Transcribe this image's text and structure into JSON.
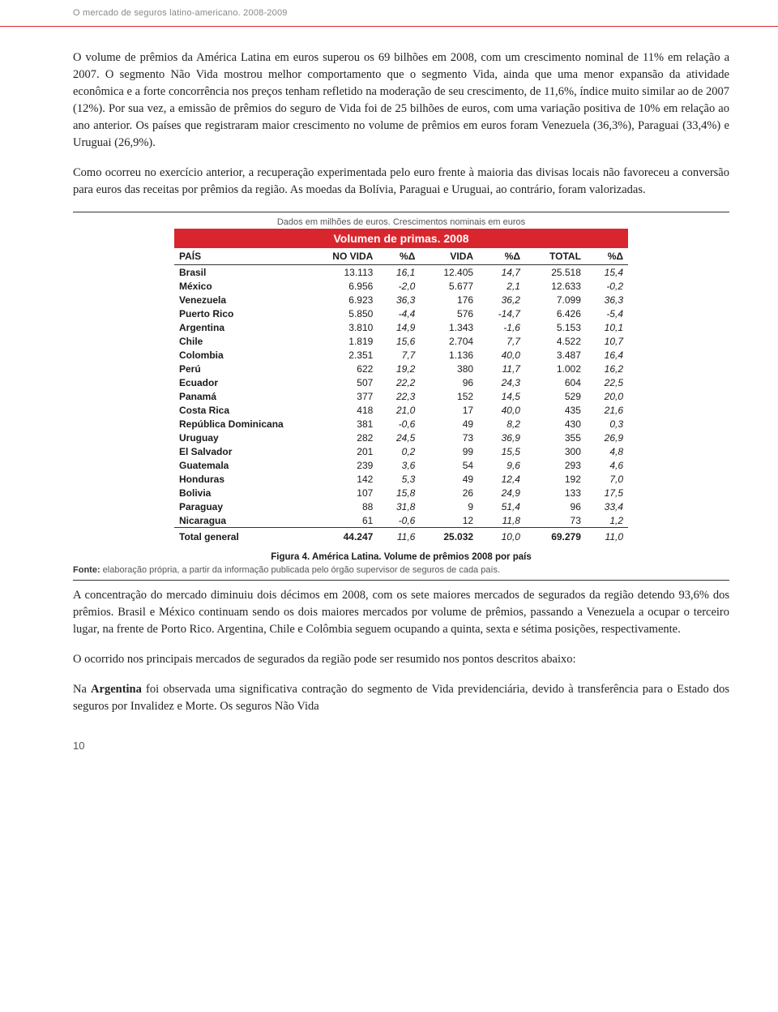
{
  "header": "O mercado de seguros latino-americano. 2008-2009",
  "paragraphs": {
    "p1": "O volume de prêmios da América Latina em euros superou os 69 bilhões em 2008, com um crescimento nominal de 11% em relação a 2007. O segmento Não Vida mostrou melhor comportamento que o segmento Vida, ainda que uma menor expansão da atividade econômica e a forte concorrência nos preços tenham refletido na moderação de seu crescimento, de 11,6%, índice muito similar ao de 2007 (12%). Por sua vez, a emissão de prêmios do seguro de Vida foi de 25 bilhões de euros, com uma variação positiva de 10% em relação ao ano anterior. Os países que registraram maior crescimento no volume de prêmios em euros foram Venezuela (36,3%), Paraguai (33,4%) e Uruguai (26,9%).",
    "p2": "Como ocorreu no exercício anterior, a recuperação experimentada pelo euro frente à maioria das divisas locais não favoreceu a conversão para euros das receitas por prêmios da região. As moedas da Bolívia, Paraguai e Uruguai, ao contrário, foram valorizadas.",
    "p3": "A concentração do mercado diminuiu dois décimos em 2008, com os sete maiores mercados de segurados da região detendo 93,6% dos prêmios. Brasil e México continuam sendo os dois maiores mercados por volume de prêmios, passando a Venezuela a ocupar o terceiro lugar, na frente de Porto Rico. Argentina, Chile e Colômbia seguem ocupando a quinta, sexta e sétima posições, respectivamente.",
    "p4": "O ocorrido nos principais mercados de segurados da região pode ser resumido nos pontos descritos abaixo:",
    "p5_pre": "Na ",
    "p5_bold": "Argentina",
    "p5_rest": " foi observada uma significativa contração do segmento de Vida previdenciária, devido à transferência para o Estado dos seguros por Invalidez e Morte. Os seguros Não Vida"
  },
  "table": {
    "note": "Dados em milhões de euros. Crescimentos nominais em euros",
    "title": "Volumen de primas. 2008",
    "columns": {
      "country": "PAÍS",
      "novida": "NO VIDA",
      "d1": "%Δ",
      "vida": "VIDA",
      "d2": "%Δ",
      "total": "TOTAL",
      "d3": "%Δ"
    },
    "rows": [
      {
        "c": "Brasil",
        "nv": "13.113",
        "d1": "16,1",
        "v": "12.405",
        "d2": "14,7",
        "t": "25.518",
        "d3": "15,4"
      },
      {
        "c": "México",
        "nv": "6.956",
        "d1": "-2,0",
        "v": "5.677",
        "d2": "2,1",
        "t": "12.633",
        "d3": "-0,2"
      },
      {
        "c": "Venezuela",
        "nv": "6.923",
        "d1": "36,3",
        "v": "176",
        "d2": "36,2",
        "t": "7.099",
        "d3": "36,3"
      },
      {
        "c": "Puerto Rico",
        "nv": "5.850",
        "d1": "-4,4",
        "v": "576",
        "d2": "-14,7",
        "t": "6.426",
        "d3": "-5,4"
      },
      {
        "c": "Argentina",
        "nv": "3.810",
        "d1": "14,9",
        "v": "1.343",
        "d2": "-1,6",
        "t": "5.153",
        "d3": "10,1"
      },
      {
        "c": "Chile",
        "nv": "1.819",
        "d1": "15,6",
        "v": "2.704",
        "d2": "7,7",
        "t": "4.522",
        "d3": "10,7"
      },
      {
        "c": "Colombia",
        "nv": "2.351",
        "d1": "7,7",
        "v": "1.136",
        "d2": "40,0",
        "t": "3.487",
        "d3": "16,4"
      },
      {
        "c": "Perú",
        "nv": "622",
        "d1": "19,2",
        "v": "380",
        "d2": "11,7",
        "t": "1.002",
        "d3": "16,2"
      },
      {
        "c": "Ecuador",
        "nv": "507",
        "d1": "22,2",
        "v": "96",
        "d2": "24,3",
        "t": "604",
        "d3": "22,5"
      },
      {
        "c": "Panamá",
        "nv": "377",
        "d1": "22,3",
        "v": "152",
        "d2": "14,5",
        "t": "529",
        "d3": "20,0"
      },
      {
        "c": "Costa Rica",
        "nv": "418",
        "d1": "21,0",
        "v": "17",
        "d2": "40,0",
        "t": "435",
        "d3": "21,6"
      },
      {
        "c": "República Dominicana",
        "nv": "381",
        "d1": "-0,6",
        "v": "49",
        "d2": "8,2",
        "t": "430",
        "d3": "0,3"
      },
      {
        "c": "Uruguay",
        "nv": "282",
        "d1": "24,5",
        "v": "73",
        "d2": "36,9",
        "t": "355",
        "d3": "26,9"
      },
      {
        "c": "El Salvador",
        "nv": "201",
        "d1": "0,2",
        "v": "99",
        "d2": "15,5",
        "t": "300",
        "d3": "4,8"
      },
      {
        "c": "Guatemala",
        "nv": "239",
        "d1": "3,6",
        "v": "54",
        "d2": "9,6",
        "t": "293",
        "d3": "4,6"
      },
      {
        "c": "Honduras",
        "nv": "142",
        "d1": "5,3",
        "v": "49",
        "d2": "12,4",
        "t": "192",
        "d3": "7,0"
      },
      {
        "c": "Bolivia",
        "nv": "107",
        "d1": "15,8",
        "v": "26",
        "d2": "24,9",
        "t": "133",
        "d3": "17,5"
      },
      {
        "c": "Paraguay",
        "nv": "88",
        "d1": "31,8",
        "v": "9",
        "d2": "51,4",
        "t": "96",
        "d3": "33,4"
      },
      {
        "c": "Nicaragua",
        "nv": "61",
        "d1": "-0,6",
        "v": "12",
        "d2": "11,8",
        "t": "73",
        "d3": "1,2"
      }
    ],
    "total_row": {
      "c": "Total general",
      "nv": "44.247",
      "d1": "11,6",
      "v": "25.032",
      "d2": "10,0",
      "t": "69.279",
      "d3": "11,0"
    },
    "caption": "Figura 4. América Latina. Volume de prêmios 2008 por país",
    "source_label": "Fonte:",
    "source_text": " elaboração própria, a partir da informação publicada pelo órgão supervisor de seguros de cada país."
  },
  "colors": {
    "accent": "#d9262e",
    "text": "#222",
    "muted": "#555"
  },
  "page_number": "10"
}
